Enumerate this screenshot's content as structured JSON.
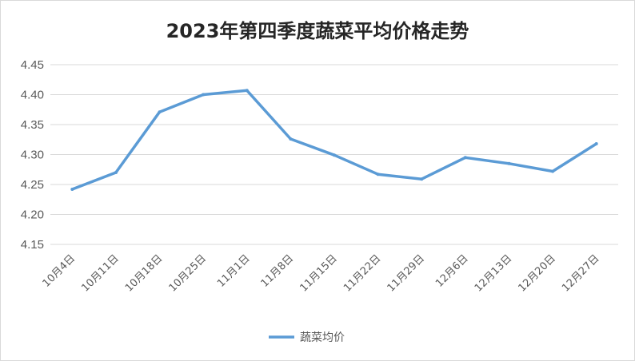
{
  "chart_data": {
    "type": "line",
    "title": "2023年第四季度蔬菜平均价格走势",
    "xlabel": "",
    "ylabel": "",
    "categories": [
      "10月4日",
      "10月11日",
      "10月18日",
      "10月25日",
      "11月1日",
      "11月8日",
      "11月15日",
      "11月22日",
      "11月29日",
      "12月6日",
      "12月13日",
      "12月20日",
      "12月27日"
    ],
    "series": [
      {
        "name": "蔬菜均价",
        "color": "#5b9bd5",
        "values": [
          4.242,
          4.27,
          4.371,
          4.4,
          4.407,
          4.326,
          4.299,
          4.267,
          4.259,
          4.295,
          4.285,
          4.272,
          4.318
        ]
      }
    ],
    "ylim": [
      4.15,
      4.45
    ],
    "yticks": [
      "4.15",
      "4.20",
      "4.25",
      "4.30",
      "4.35",
      "4.40",
      "4.45"
    ],
    "grid": true,
    "legend_position": "bottom"
  }
}
